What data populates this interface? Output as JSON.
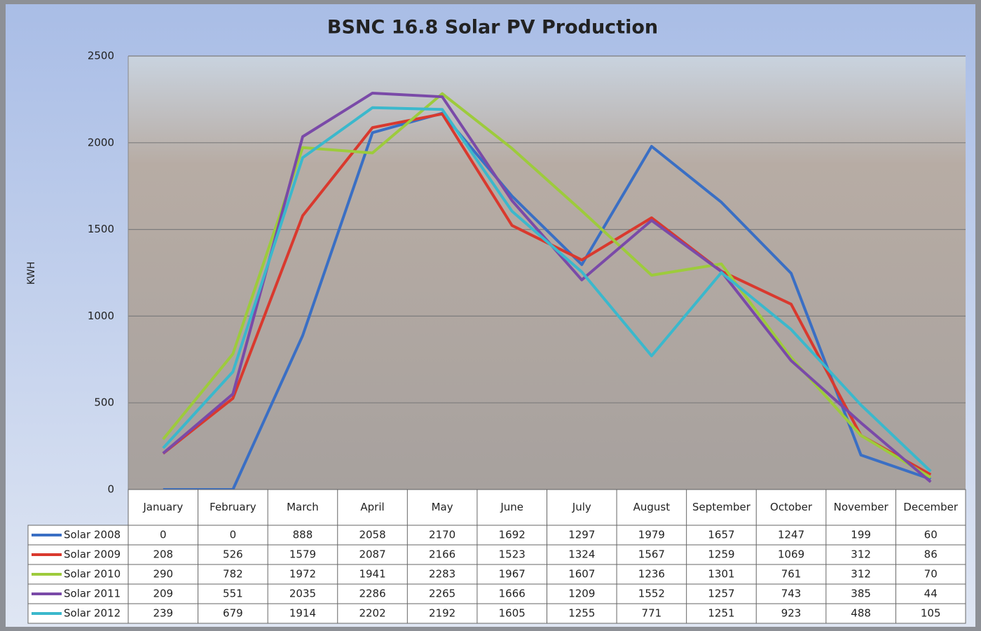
{
  "chart_data": {
    "type": "line",
    "title": "BSNC 16.8 Solar PV Production",
    "y_label": "KWH",
    "categories": [
      "January",
      "February",
      "March",
      "April",
      "May",
      "June",
      "July",
      "August",
      "September",
      "October",
      "November",
      "December"
    ],
    "ylim": [
      0,
      2500
    ],
    "yticks": [
      0,
      500,
      1000,
      1500,
      2000,
      2500
    ],
    "grid": true,
    "series": [
      {
        "name": "Solar 2008",
        "color": "#3a6fc4",
        "values": [
          0,
          0,
          888,
          2058,
          2170,
          1692,
          1297,
          1979,
          1657,
          1247,
          199,
          60
        ]
      },
      {
        "name": "Solar 2009",
        "color": "#d9392e",
        "values": [
          208,
          526,
          1579,
          2087,
          2166,
          1523,
          1324,
          1567,
          1259,
          1069,
          312,
          86
        ]
      },
      {
        "name": "Solar 2010",
        "color": "#9dcb3c",
        "values": [
          290,
          782,
          1972,
          1941,
          2283,
          1967,
          1607,
          1236,
          1301,
          761,
          312,
          70
        ]
      },
      {
        "name": "Solar 2011",
        "color": "#7a4aa8",
        "values": [
          209,
          551,
          2035,
          2286,
          2265,
          1666,
          1209,
          1552,
          1257,
          743,
          385,
          44
        ]
      },
      {
        "name": "Solar 2012",
        "color": "#3bb8cc",
        "values": [
          239,
          679,
          1914,
          2202,
          2192,
          1605,
          1255,
          771,
          1251,
          923,
          488,
          105
        ]
      }
    ]
  }
}
